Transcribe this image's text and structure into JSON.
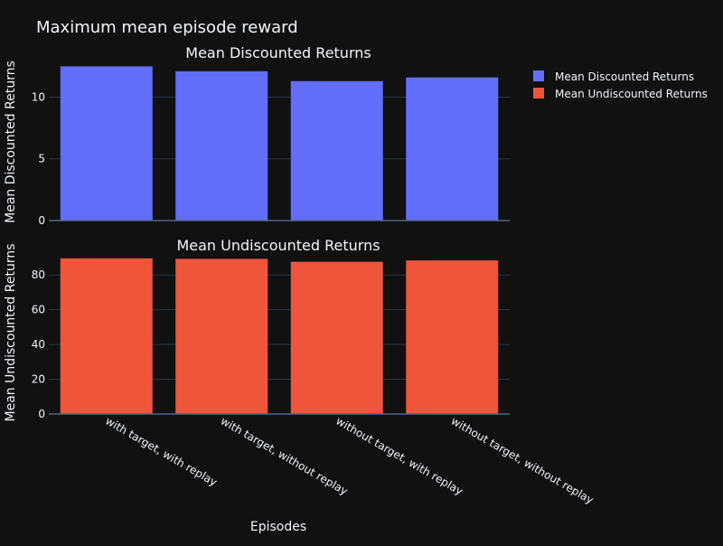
{
  "title": "Maximum mean episode reward",
  "xlabel": "Episodes",
  "colors": {
    "background": "#111111",
    "grid": "#283442",
    "text": "#f2f5fa",
    "series_0": "#636efa",
    "series_1": "#ef553b"
  },
  "legend": {
    "placement": "top-right"
  },
  "chart_data": [
    {
      "type": "bar",
      "title": "Mean Discounted Returns",
      "ylabel": "Mean Discounted Returns",
      "categories": [
        "with target, with replay",
        "with target, without replay",
        "without target, with replay",
        "without target, without replay"
      ],
      "series": [
        {
          "name": "Mean Discounted Returns",
          "values": [
            12.5,
            12.1,
            11.3,
            11.6
          ]
        }
      ],
      "ylim": [
        0,
        12.6
      ],
      "yticks": [
        0,
        5,
        10
      ],
      "ytick_labels": [
        "0",
        "5",
        "10"
      ],
      "grid": true
    },
    {
      "type": "bar",
      "title": "Mean Undiscounted Returns",
      "ylabel": "Mean Undiscounted Returns",
      "categories": [
        "with target, with replay",
        "with target, without replay",
        "without target, with replay",
        "without target, without replay"
      ],
      "series": [
        {
          "name": "Mean Undiscounted Returns",
          "values": [
            89.6,
            89.3,
            87.6,
            88.4
          ]
        }
      ],
      "ylim": [
        0,
        90
      ],
      "yticks": [
        0,
        20,
        40,
        60,
        80
      ],
      "ytick_labels": [
        "0",
        "20",
        "40",
        "60",
        "80"
      ],
      "grid": true
    }
  ]
}
